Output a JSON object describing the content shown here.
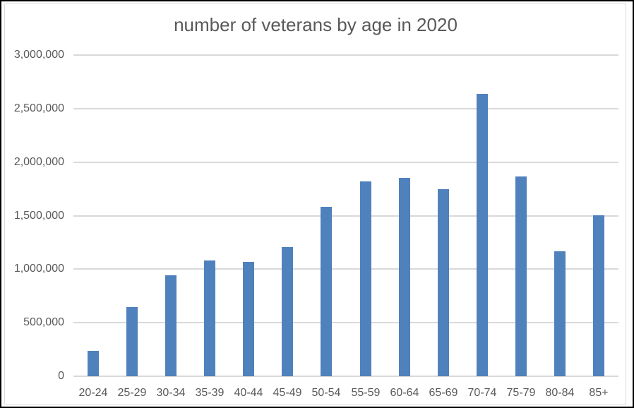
{
  "chart_data": {
    "type": "bar",
    "title": "number of veterans by age in 2020",
    "categories": [
      "20-24",
      "25-29",
      "30-34",
      "35-39",
      "40-44",
      "45-49",
      "50-54",
      "55-59",
      "60-64",
      "65-69",
      "70-74",
      "75-79",
      "80-84",
      "85+"
    ],
    "values": [
      240000,
      645000,
      940000,
      1080000,
      1065000,
      1205000,
      1585000,
      1820000,
      1855000,
      1745000,
      2635000,
      1865000,
      1170000,
      1500000
    ],
    "xlabel": "",
    "ylabel": "",
    "ylim": [
      0,
      3000000
    ],
    "ytick_interval": 500000,
    "ytick_labels": [
      "0",
      "500,000",
      "1,000,000",
      "1,500,000",
      "2,000,000",
      "2,500,000",
      "3,000,000"
    ],
    "grid": true,
    "legend_position": "none",
    "bar_color": "#4F81BD",
    "gridline_color": "#D9D9D9",
    "text_color": "#595959",
    "background_color": "#FFFFFF",
    "border_color": "#000000"
  }
}
